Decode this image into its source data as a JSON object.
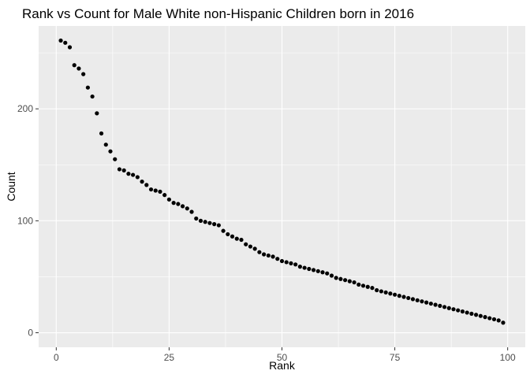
{
  "chart_data": {
    "type": "scatter",
    "title": "Rank vs Count for Male White non-Hispanic Children born in 2016",
    "xlabel": "Rank",
    "ylabel": "Count",
    "xlim": [
      -3.9,
      103.9
    ],
    "ylim": [
      -13,
      274
    ],
    "x_ticks": [
      0,
      25,
      50,
      75,
      100
    ],
    "y_ticks": [
      0,
      100,
      200
    ],
    "x_tick_labels": [
      "0",
      "25",
      "50",
      "75",
      "100"
    ],
    "y_tick_labels": [
      "0",
      "100",
      "200"
    ],
    "grid": true,
    "legend": "none",
    "colors": {
      "panel": "#ebebeb",
      "grid": "#ffffff",
      "point": "#000000",
      "tick": "#333333"
    },
    "x": [
      1,
      2,
      3,
      4,
      5,
      6,
      7,
      8,
      9,
      10,
      11,
      12,
      13,
      14,
      15,
      16,
      17,
      18,
      19,
      20,
      21,
      22,
      23,
      24,
      25,
      26,
      27,
      28,
      29,
      30,
      31,
      32,
      33,
      34,
      35,
      36,
      37,
      38,
      39,
      40,
      41,
      42,
      43,
      44,
      45,
      46,
      47,
      48,
      49,
      50,
      51,
      52,
      53,
      54,
      55,
      56,
      57,
      58,
      59,
      60,
      61,
      62,
      63,
      64,
      65,
      66,
      67,
      68,
      69,
      70,
      71,
      72,
      73,
      74,
      75,
      76,
      77,
      78,
      79,
      80,
      81,
      82,
      83,
      84,
      85,
      86,
      87,
      88,
      89,
      90,
      91,
      92,
      93,
      94,
      95,
      96,
      97,
      98,
      99
    ],
    "y": [
      261,
      259,
      255,
      239,
      236,
      231,
      219,
      211,
      196,
      178,
      168,
      162,
      155,
      146,
      145,
      142,
      141,
      139,
      135,
      132,
      128,
      127,
      126,
      123,
      119,
      116,
      115,
      113,
      111,
      108,
      102,
      100,
      99,
      98,
      97,
      96,
      91,
      88,
      86,
      84,
      83,
      79,
      77,
      75,
      72,
      70,
      69,
      68,
      66,
      64,
      63,
      62,
      61,
      59,
      58,
      57,
      56,
      55,
      54,
      53,
      51,
      49,
      48,
      47,
      46,
      45,
      43,
      42,
      41,
      40,
      38,
      37,
      36,
      35,
      34,
      33,
      32,
      31,
      30,
      29,
      28,
      27,
      26,
      25,
      24,
      23,
      22,
      21,
      20,
      19,
      18,
      17,
      16,
      15,
      14,
      13,
      12,
      11,
      9
    ]
  }
}
